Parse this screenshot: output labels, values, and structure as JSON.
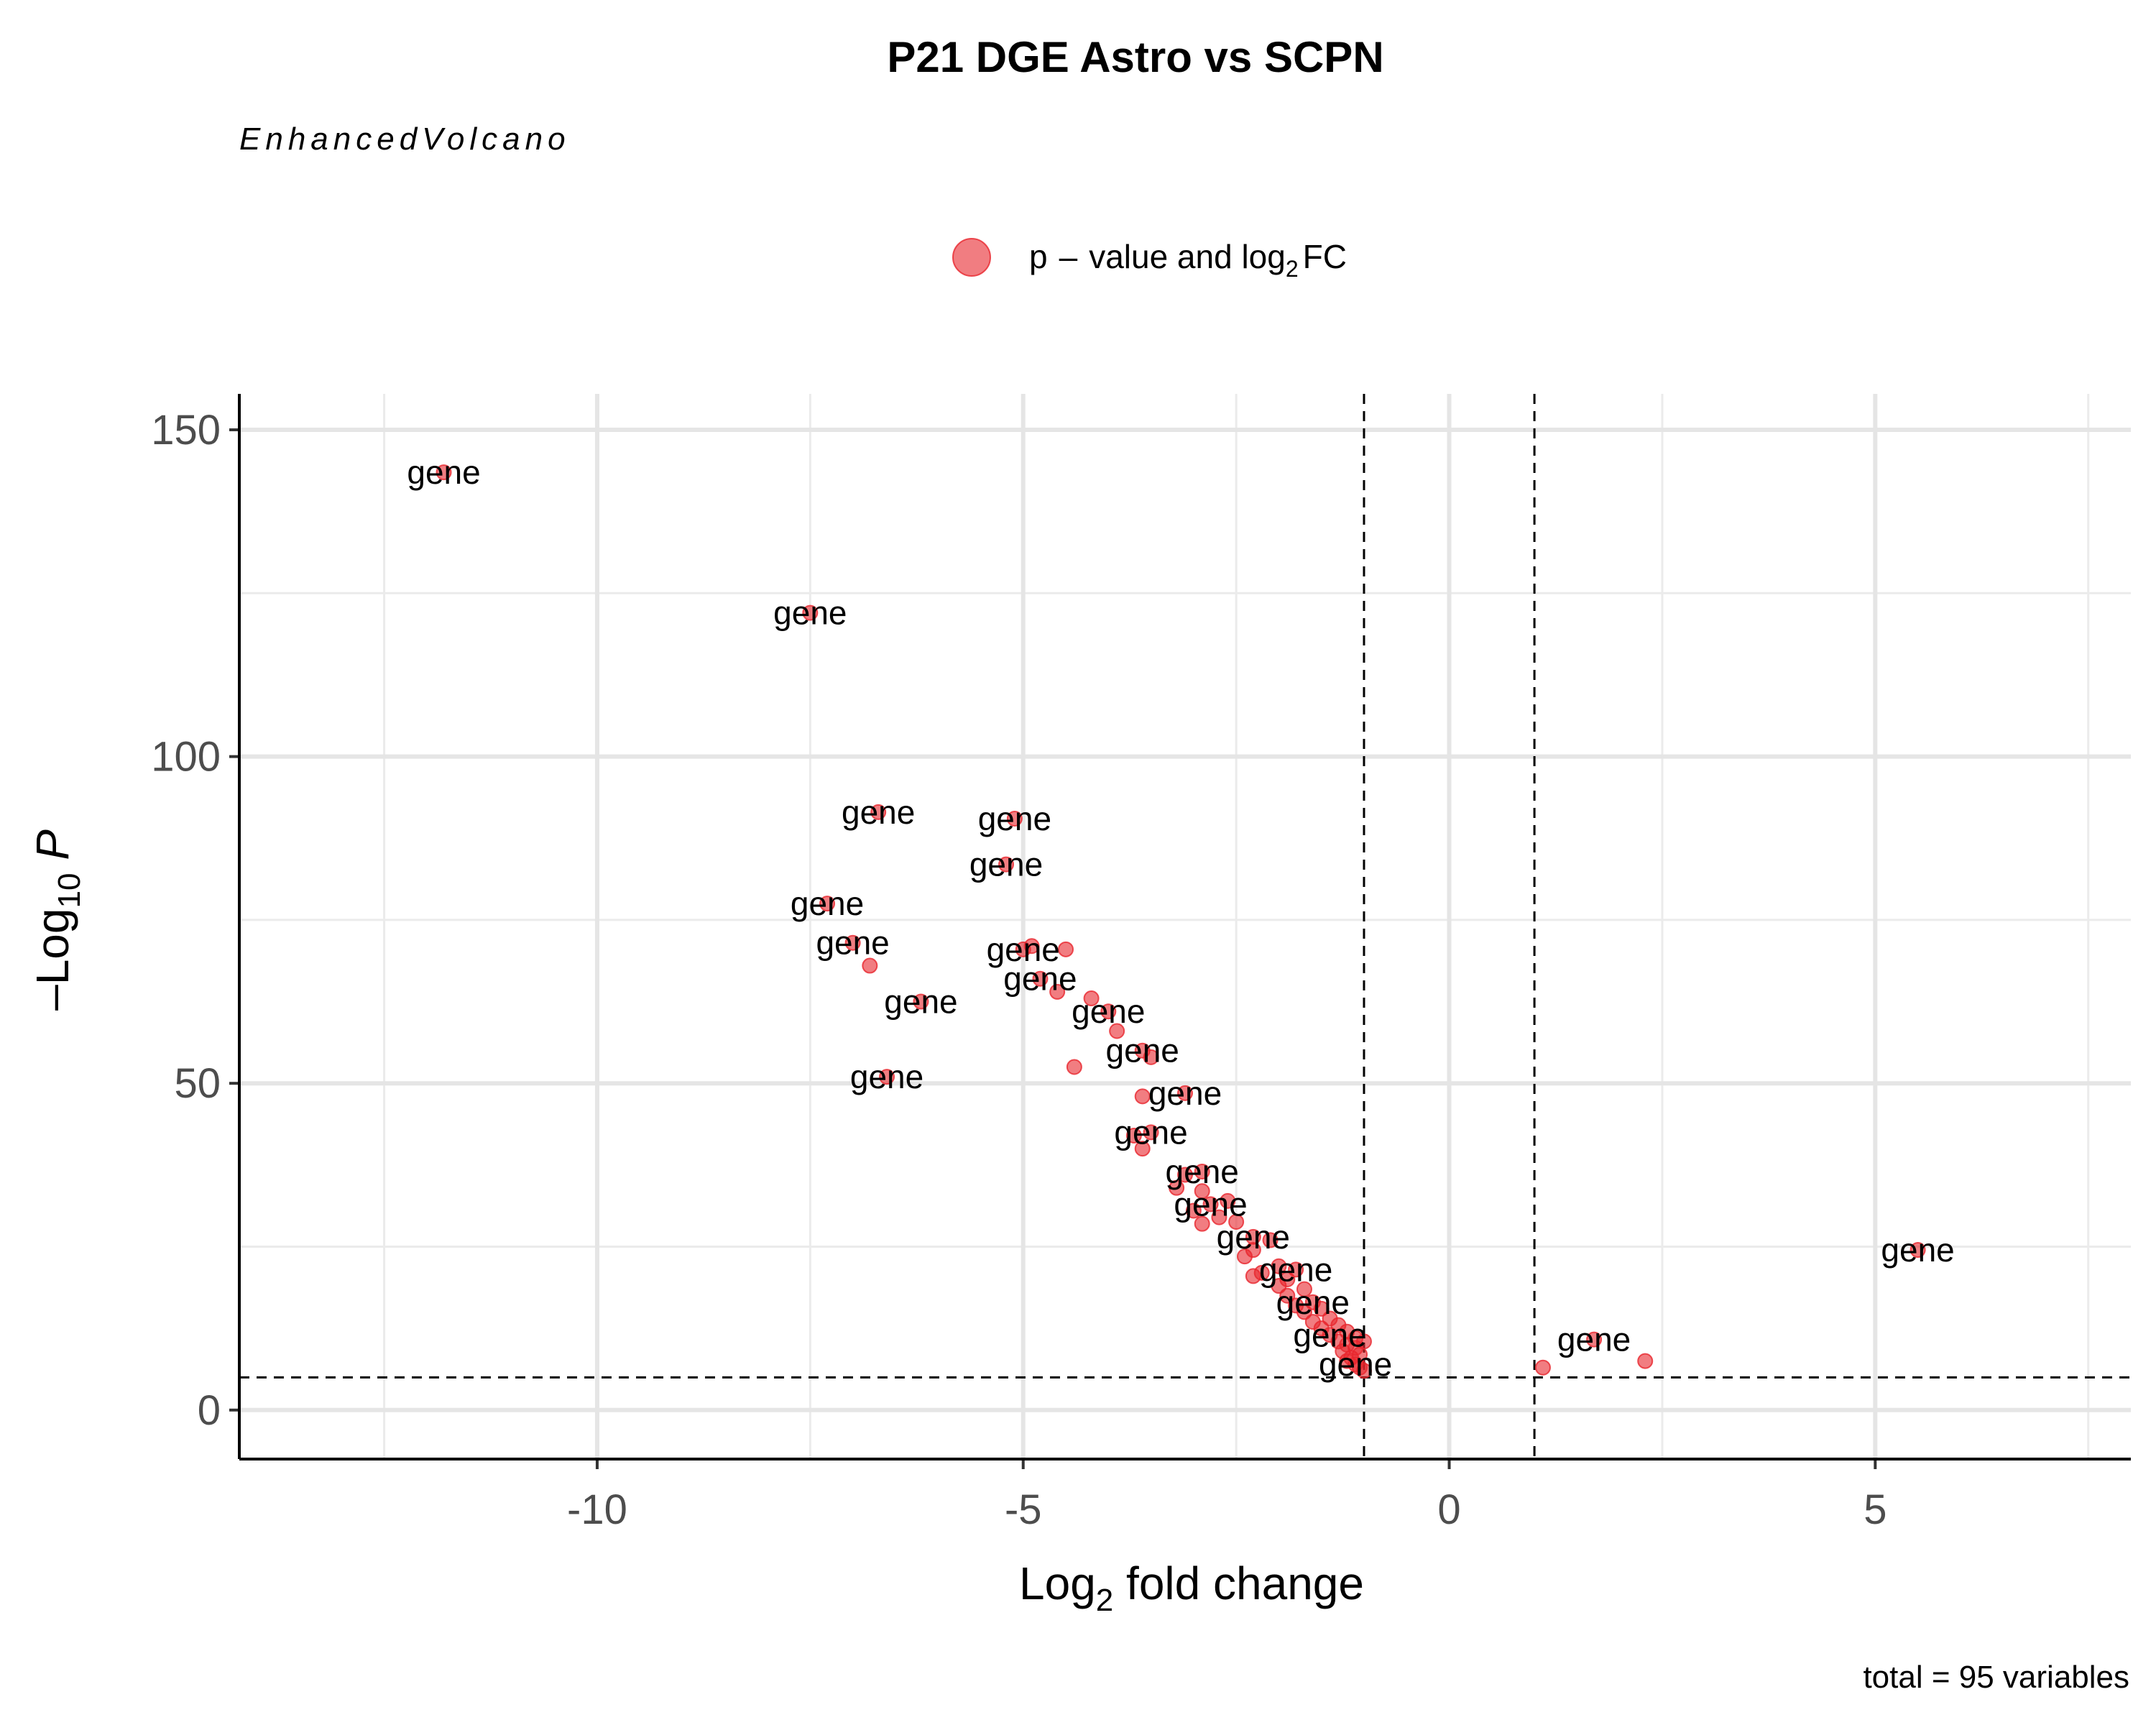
{
  "chart_data": {
    "type": "scatter",
    "title": "P21 DGE Astro vs SCPN",
    "subtitle": "EnhancedVolcano",
    "caption": "total = 95 variables",
    "xlabel": "Log2 fold change",
    "ylabel": "-Log10 P",
    "xlim": [
      -14.2,
      8.0
    ],
    "ylim": [
      -7.5,
      155.5
    ],
    "x_ticks": [
      -10,
      -5,
      0,
      5
    ],
    "y_ticks": [
      0,
      50,
      100,
      150
    ],
    "grid": true,
    "cutoffs": {
      "log2fc": [
        -1,
        1
      ],
      "neg_log10_p": 5
    },
    "legend": {
      "position": "top",
      "entries": [
        {
          "name": "p – value and log2 FC",
          "color": "#e8262d"
        }
      ]
    },
    "point_color": "#e8262d",
    "points": [
      {
        "x": -11.8,
        "y": 143.5,
        "label": "gene"
      },
      {
        "x": -7.5,
        "y": 122.0,
        "label": "gene"
      },
      {
        "x": -6.7,
        "y": 91.5,
        "label": "gene"
      },
      {
        "x": -5.1,
        "y": 90.5,
        "label": "gene"
      },
      {
        "x": -5.2,
        "y": 83.5,
        "label": "gene"
      },
      {
        "x": -7.3,
        "y": 77.5,
        "label": "gene"
      },
      {
        "x": -7.0,
        "y": 71.5,
        "label": "gene"
      },
      {
        "x": -6.8,
        "y": 68.0
      },
      {
        "x": -5.0,
        "y": 70.5,
        "label": "gene"
      },
      {
        "x": -4.9,
        "y": 71.0
      },
      {
        "x": -4.5,
        "y": 70.5
      },
      {
        "x": -4.8,
        "y": 66.0,
        "label": "gene"
      },
      {
        "x": -4.6,
        "y": 64.0
      },
      {
        "x": -4.2,
        "y": 63.0
      },
      {
        "x": -6.2,
        "y": 62.5,
        "label": "gene"
      },
      {
        "x": -4.0,
        "y": 61.0,
        "label": "gene"
      },
      {
        "x": -3.9,
        "y": 58.0
      },
      {
        "x": -6.6,
        "y": 51.0,
        "label": "gene"
      },
      {
        "x": -3.6,
        "y": 55.0,
        "label": "gene"
      },
      {
        "x": -3.5,
        "y": 54.0
      },
      {
        "x": -4.4,
        "y": 52.5
      },
      {
        "x": -3.1,
        "y": 48.5,
        "label": "gene"
      },
      {
        "x": -3.6,
        "y": 48.0
      },
      {
        "x": -3.5,
        "y": 42.5,
        "label": "gene"
      },
      {
        "x": -3.7,
        "y": 42.0
      },
      {
        "x": -3.6,
        "y": 40.0
      },
      {
        "x": -2.9,
        "y": 36.5,
        "label": "gene"
      },
      {
        "x": -3.1,
        "y": 36.0
      },
      {
        "x": -3.2,
        "y": 34.0
      },
      {
        "x": -2.9,
        "y": 33.5
      },
      {
        "x": -2.8,
        "y": 31.5,
        "label": "gene"
      },
      {
        "x": -2.6,
        "y": 32.0
      },
      {
        "x": -3.0,
        "y": 30.5
      },
      {
        "x": -2.7,
        "y": 29.5
      },
      {
        "x": -2.9,
        "y": 28.5
      },
      {
        "x": -2.5,
        "y": 28.8
      },
      {
        "x": -2.3,
        "y": 26.5,
        "label": "gene"
      },
      {
        "x": -2.1,
        "y": 26.0
      },
      {
        "x": -2.3,
        "y": 24.5
      },
      {
        "x": -2.4,
        "y": 23.5
      },
      {
        "x": -2.0,
        "y": 22.0
      },
      {
        "x": -1.8,
        "y": 21.5,
        "label": "gene"
      },
      {
        "x": -2.2,
        "y": 21.0
      },
      {
        "x": -2.3,
        "y": 20.5
      },
      {
        "x": -1.9,
        "y": 20.0
      },
      {
        "x": -2.0,
        "y": 19.0
      },
      {
        "x": -1.7,
        "y": 18.5
      },
      {
        "x": -1.9,
        "y": 17.5
      },
      {
        "x": -1.6,
        "y": 16.5,
        "label": "gene"
      },
      {
        "x": -1.8,
        "y": 16.0
      },
      {
        "x": -1.5,
        "y": 15.5
      },
      {
        "x": -1.7,
        "y": 15.0
      },
      {
        "x": -1.4,
        "y": 14.0
      },
      {
        "x": -1.6,
        "y": 13.5
      },
      {
        "x": -1.3,
        "y": 13.0
      },
      {
        "x": -1.5,
        "y": 12.5
      },
      {
        "x": -1.2,
        "y": 12.0
      },
      {
        "x": -1.4,
        "y": 11.5,
        "label": "gene"
      },
      {
        "x": -1.1,
        "y": 11.0
      },
      {
        "x": -1.3,
        "y": 10.5
      },
      {
        "x": -1.0,
        "y": 10.5
      },
      {
        "x": -1.2,
        "y": 10.0
      },
      {
        "x": -1.1,
        "y": 9.5
      },
      {
        "x": -1.25,
        "y": 9.0
      },
      {
        "x": -1.05,
        "y": 8.5
      },
      {
        "x": -1.15,
        "y": 8.0
      },
      {
        "x": -1.2,
        "y": 7.5
      },
      {
        "x": -1.1,
        "y": 7.0,
        "label": "gene"
      },
      {
        "x": -1.05,
        "y": 6.5
      },
      {
        "x": -1.0,
        "y": 6.0
      },
      {
        "x": 1.7,
        "y": 10.8,
        "label": "gene"
      },
      {
        "x": 1.1,
        "y": 6.5
      },
      {
        "x": 2.3,
        "y": 7.5
      },
      {
        "x": 5.5,
        "y": 24.5,
        "label": "gene"
      }
    ]
  }
}
